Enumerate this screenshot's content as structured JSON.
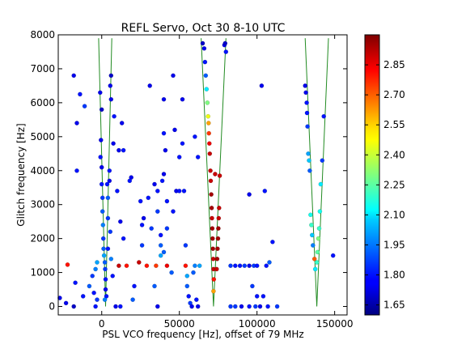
{
  "chart_data": {
    "type": "scatter",
    "title": "REFL Servo, Oct 30 8-10 UTC",
    "xlabel": "PSL VCO frequency [Hz], offset of 79 MHz",
    "ylabel": "Glitch frequency [Hz]",
    "xlim": [
      -28000,
      158000
    ],
    "ylim": [
      -250,
      8000
    ],
    "xticks": [
      0,
      50000,
      100000,
      150000
    ],
    "xtick_labels": [
      "0",
      "50000",
      "100000",
      "150000"
    ],
    "yticks": [
      0,
      1000,
      2000,
      3000,
      4000,
      5000,
      6000,
      7000,
      8000
    ],
    "ytick_labels": [
      "0",
      "1000",
      "2000",
      "3000",
      "4000",
      "5000",
      "6000",
      "7000",
      "8000"
    ],
    "colorbar": {
      "min": 1.6,
      "max": 3.0,
      "ticks": [
        1.65,
        1.8,
        1.95,
        2.1,
        2.25,
        2.4,
        2.55,
        2.7,
        2.85
      ],
      "tick_labels": [
        "1.65",
        "1.80",
        "1.95",
        "2.10",
        "2.25",
        "2.40",
        "2.55",
        "2.70",
        "2.85"
      ],
      "colormap": "jet"
    },
    "lines_color": "#228b22",
    "lines": [
      {
        "points": [
          [
            -2000,
            7900
          ],
          [
            2500,
            0
          ],
          [
            6500,
            7900
          ]
        ]
      },
      {
        "points": [
          [
            64000,
            7900
          ],
          [
            72000,
            0
          ],
          [
            80000,
            7900
          ]
        ]
      },
      {
        "points": [
          [
            131000,
            7900
          ],
          [
            138500,
            0
          ],
          [
            146000,
            7900
          ]
        ]
      }
    ],
    "points": [
      [
        -18000,
        6800,
        1.75
      ],
      [
        -14000,
        6250,
        1.8
      ],
      [
        -11000,
        5900,
        1.85
      ],
      [
        -16000,
        5400,
        1.75
      ],
      [
        -16000,
        4000,
        1.8
      ],
      [
        -22000,
        1230,
        2.8
      ],
      [
        -17000,
        700,
        1.8
      ],
      [
        -8000,
        600,
        1.9
      ],
      [
        -12000,
        300,
        1.8
      ],
      [
        -27000,
        250,
        1.75
      ],
      [
        -23000,
        100,
        1.75
      ],
      [
        -18000,
        0,
        1.7
      ],
      [
        -1000,
        6300,
        1.75
      ],
      [
        0,
        5800,
        1.7
      ],
      [
        -500,
        4900,
        1.75
      ],
      [
        -800,
        4400,
        1.8
      ],
      [
        0,
        4100,
        1.75
      ],
      [
        0,
        3600,
        1.8
      ],
      [
        500,
        3200,
        1.85
      ],
      [
        500,
        2800,
        1.9
      ],
      [
        800,
        2400,
        1.95
      ],
      [
        1000,
        2000,
        1.85
      ],
      [
        1200,
        1700,
        1.9
      ],
      [
        1500,
        1500,
        2.0
      ],
      [
        2000,
        1300,
        1.9
      ],
      [
        2200,
        1100,
        1.85
      ],
      [
        2500,
        800,
        1.8
      ],
      [
        2500,
        500,
        1.75
      ],
      [
        3000,
        300,
        1.8
      ],
      [
        2000,
        200,
        1.95
      ],
      [
        4000,
        1700,
        1.8
      ],
      [
        4000,
        2600,
        1.85
      ],
      [
        4000,
        3200,
        1.9
      ],
      [
        3500,
        3600,
        1.8
      ],
      [
        5000,
        3700,
        1.75
      ],
      [
        5000,
        4000,
        1.8
      ],
      [
        6000,
        6800,
        1.7
      ],
      [
        5500,
        6500,
        1.75
      ],
      [
        6000,
        6100,
        1.75
      ],
      [
        8000,
        5600,
        1.8
      ],
      [
        7500,
        4800,
        1.75
      ],
      [
        5500,
        2200,
        1.85
      ],
      [
        6000,
        1400,
        1.95
      ],
      [
        7000,
        900,
        1.8
      ],
      [
        -3000,
        1300,
        2.0
      ],
      [
        -4000,
        1100,
        1.95
      ],
      [
        -6000,
        900,
        1.85
      ],
      [
        -5000,
        400,
        1.8
      ],
      [
        -3000,
        200,
        1.85
      ],
      [
        -4000,
        0,
        1.8
      ],
      [
        9000,
        0,
        1.75
      ],
      [
        12000,
        0,
        1.8
      ],
      [
        11000,
        4600,
        1.75
      ],
      [
        13000,
        5400,
        1.75
      ],
      [
        14000,
        4600,
        1.8
      ],
      [
        10000,
        3400,
        1.8
      ],
      [
        12000,
        2500,
        1.75
      ],
      [
        14000,
        2000,
        1.8
      ],
      [
        16000,
        1200,
        2.8
      ],
      [
        11000,
        1200,
        2.9
      ],
      [
        19000,
        3800,
        1.75
      ],
      [
        18000,
        3700,
        1.8
      ],
      [
        21000,
        600,
        1.8
      ],
      [
        20000,
        200,
        1.9
      ],
      [
        25000,
        3100,
        1.8
      ],
      [
        26000,
        2400,
        1.8
      ],
      [
        27000,
        2600,
        1.75
      ],
      [
        26000,
        1800,
        1.85
      ],
      [
        24000,
        1300,
        2.9
      ],
      [
        29000,
        1200,
        2.8
      ],
      [
        31000,
        6500,
        1.75
      ],
      [
        30000,
        3200,
        1.8
      ],
      [
        32000,
        2300,
        1.85
      ],
      [
        34000,
        3600,
        1.75
      ],
      [
        36000,
        3400,
        1.8
      ],
      [
        36000,
        2800,
        1.85
      ],
      [
        38000,
        2100,
        1.8
      ],
      [
        38000,
        1800,
        1.9
      ],
      [
        38000,
        1500,
        2.0
      ],
      [
        35000,
        1200,
        2.75
      ],
      [
        34000,
        600,
        1.9
      ],
      [
        36000,
        0,
        1.75
      ],
      [
        40000,
        6100,
        1.75
      ],
      [
        40000,
        5100,
        1.8
      ],
      [
        39000,
        3700,
        1.8
      ],
      [
        40000,
        3900,
        1.75
      ],
      [
        41000,
        4600,
        1.75
      ],
      [
        42000,
        3100,
        1.8
      ],
      [
        42000,
        2300,
        1.85
      ],
      [
        40000,
        1600,
        1.9
      ],
      [
        42000,
        1200,
        2.85
      ],
      [
        45000,
        1000,
        1.9
      ],
      [
        46000,
        6800,
        1.75
      ],
      [
        47000,
        5200,
        1.75
      ],
      [
        46000,
        2800,
        1.8
      ],
      [
        48000,
        3400,
        1.75
      ],
      [
        50000,
        3400,
        1.8
      ],
      [
        50000,
        4400,
        1.8
      ],
      [
        52000,
        6100,
        1.75
      ],
      [
        52000,
        4800,
        1.8
      ],
      [
        53000,
        3400,
        1.8
      ],
      [
        54000,
        1800,
        1.85
      ],
      [
        54000,
        1200,
        2.8
      ],
      [
        55000,
        900,
        2.0
      ],
      [
        55000,
        600,
        1.9
      ],
      [
        56000,
        300,
        1.8
      ],
      [
        57000,
        100,
        1.85
      ],
      [
        58000,
        0,
        1.75
      ],
      [
        59000,
        1000,
        1.9
      ],
      [
        60000,
        1200,
        1.95
      ],
      [
        61000,
        200,
        1.8
      ],
      [
        62000,
        0,
        1.75
      ],
      [
        63000,
        1200,
        2.0
      ],
      [
        60000,
        5000,
        1.8
      ],
      [
        62000,
        4400,
        1.8
      ],
      [
        65000,
        7750,
        1.7
      ],
      [
        66000,
        7600,
        1.75
      ],
      [
        66500,
        7200,
        1.8
      ],
      [
        67000,
        6800,
        1.9
      ],
      [
        67500,
        6400,
        2.1
      ],
      [
        68000,
        6000,
        2.3
      ],
      [
        68500,
        5600,
        2.45
      ],
      [
        68800,
        5400,
        2.6
      ],
      [
        69000,
        5100,
        2.75
      ],
      [
        69300,
        4800,
        2.85
      ],
      [
        69600,
        4500,
        2.9
      ],
      [
        70000,
        4000,
        2.9
      ],
      [
        70200,
        3700,
        2.9
      ],
      [
        70500,
        3300,
        2.95
      ],
      [
        70800,
        2900,
        2.95
      ],
      [
        71000,
        2600,
        2.9
      ],
      [
        71200,
        2300,
        2.95
      ],
      [
        71400,
        2000,
        2.95
      ],
      [
        71600,
        1700,
        2.95
      ],
      [
        71800,
        1400,
        2.9
      ],
      [
        72000,
        1100,
        2.9
      ],
      [
        72200,
        800,
        2.8
      ],
      [
        72000,
        450,
        2.6
      ],
      [
        73000,
        3900,
        2.9
      ],
      [
        74000,
        1100,
        2.9
      ],
      [
        74300,
        1400,
        2.95
      ],
      [
        74600,
        1700,
        2.95
      ],
      [
        74900,
        2000,
        2.95
      ],
      [
        75100,
        2300,
        2.95
      ],
      [
        75300,
        2600,
        2.9
      ],
      [
        75600,
        2900,
        2.9
      ],
      [
        76000,
        3850,
        2.9
      ],
      [
        79000,
        7700,
        1.75
      ],
      [
        80000,
        7500,
        1.8
      ],
      [
        79500,
        7750,
        1.7
      ],
      [
        83000,
        1200,
        1.85
      ],
      [
        86000,
        1200,
        1.8
      ],
      [
        89000,
        1200,
        1.8
      ],
      [
        92000,
        1200,
        1.85
      ],
      [
        95000,
        1200,
        1.75
      ],
      [
        95000,
        3300,
        1.75
      ],
      [
        97000,
        600,
        1.85
      ],
      [
        98000,
        1200,
        1.85
      ],
      [
        100000,
        1200,
        1.8
      ],
      [
        103000,
        6500,
        1.75
      ],
      [
        105000,
        3400,
        1.8
      ],
      [
        106000,
        1200,
        1.8
      ],
      [
        108000,
        1300,
        1.9
      ],
      [
        110000,
        1900,
        1.8
      ],
      [
        113000,
        0,
        1.85
      ],
      [
        100000,
        300,
        1.8
      ],
      [
        104000,
        300,
        1.8
      ],
      [
        83000,
        0,
        1.85
      ],
      [
        86000,
        0,
        1.85
      ],
      [
        90000,
        0,
        1.75
      ],
      [
        95000,
        0,
        1.8
      ],
      [
        99000,
        0,
        1.85
      ],
      [
        102000,
        0,
        1.75
      ],
      [
        107000,
        0,
        1.8
      ],
      [
        131000,
        6500,
        1.75
      ],
      [
        131500,
        6300,
        1.75
      ],
      [
        132000,
        6000,
        1.8
      ],
      [
        132200,
        5700,
        1.8
      ],
      [
        132500,
        5300,
        1.85
      ],
      [
        133000,
        4500,
        2.0
      ],
      [
        133500,
        4300,
        2.05
      ],
      [
        134000,
        4000,
        1.9
      ],
      [
        134500,
        2700,
        2.15
      ],
      [
        135000,
        2400,
        2.2
      ],
      [
        135500,
        2100,
        2.05
      ],
      [
        136000,
        1800,
        1.95
      ],
      [
        137000,
        1400,
        2.7
      ],
      [
        137500,
        1100,
        2.1
      ],
      [
        138500,
        1300,
        2.2
      ],
      [
        139000,
        1600,
        2.25
      ],
      [
        139500,
        2000,
        2.3
      ],
      [
        140000,
        2300,
        2.2
      ],
      [
        140500,
        2800,
        2.15
      ],
      [
        141000,
        3600,
        2.1
      ],
      [
        142000,
        4300,
        1.85
      ],
      [
        143000,
        5600,
        1.8
      ],
      [
        149000,
        1500,
        1.8
      ]
    ]
  }
}
